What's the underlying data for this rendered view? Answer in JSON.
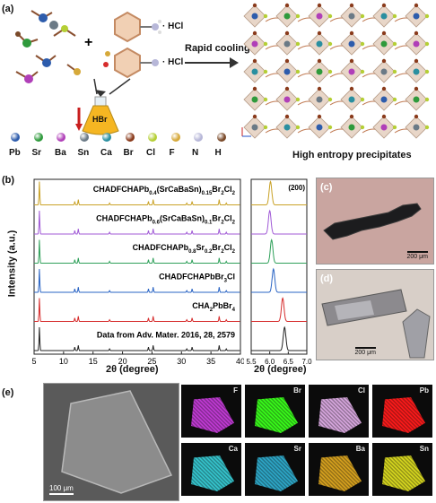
{
  "panel_a": {
    "label": "(a)",
    "hcl_top": "· HCl",
    "hcl_bottom": "· HCl",
    "plus": "+",
    "hbr": "HBr",
    "arrow_label": "Rapid cooling",
    "precipitate_label": "High entropy precipitates",
    "legend": [
      {
        "symbol": "Pb",
        "color": "#2d5cac"
      },
      {
        "symbol": "Sr",
        "color": "#2f9a3c"
      },
      {
        "symbol": "Ba",
        "color": "#b03fb8"
      },
      {
        "symbol": "Sn",
        "color": "#6b7a86"
      },
      {
        "symbol": "Ca",
        "color": "#2a8fa0"
      },
      {
        "symbol": "Br",
        "color": "#8a3b1c"
      },
      {
        "symbol": "Cl",
        "color": "#b5cf35"
      },
      {
        "symbol": "F",
        "color": "#d6a93a"
      },
      {
        "symbol": "N",
        "color": "#b7b7d8"
      },
      {
        "symbol": "H",
        "color": "#7a4a2a"
      }
    ]
  },
  "panel_b": {
    "label": "(b)",
    "ylabel": "Intensity (a.u.)",
    "xlabel_main": "2θ (degree)",
    "xlabel_zoom": "2θ (degree)",
    "zoom_tag": "(200)",
    "main_ticks": [
      "5",
      "10",
      "15",
      "20",
      "25",
      "30",
      "35",
      "40"
    ],
    "zoom_ticks": [
      "5.5",
      "6.0",
      "6.5",
      "7.0"
    ],
    "traces": [
      {
        "label": "CHADFCHAPb0.4(SrCaBaSn)0.15Br2Cl2",
        "color": "#c9a227"
      },
      {
        "label": "CHADFCHAPb0.6(SrCaBaSn)0.1Br2Cl2",
        "color": "#a05ad6"
      },
      {
        "label": "CHADFCHAPb0.8Sr0.2Br2Cl2",
        "color": "#2fa05a"
      },
      {
        "label": "CHADFCHAPbBr3Cl",
        "color": "#2a64c4"
      },
      {
        "label": "CHA2PbBr4",
        "color": "#d62c2c"
      },
      {
        "label": "Data from Adv. Mater. 2016, 28, 2579",
        "color": "#222222"
      }
    ],
    "trace_parts": [
      [
        {
          "t": "CHADFCHAPb"
        },
        {
          "s": "0.4"
        },
        {
          "t": "(SrCaBaSn)"
        },
        {
          "s": "0.15"
        },
        {
          "t": "Br"
        },
        {
          "s": "2"
        },
        {
          "t": "Cl"
        },
        {
          "s": "2"
        }
      ],
      [
        {
          "t": "CHADFCHAPb"
        },
        {
          "s": "0.6"
        },
        {
          "t": "(SrCaBaSn)"
        },
        {
          "s": "0.1"
        },
        {
          "t": "Br"
        },
        {
          "s": "2"
        },
        {
          "t": "Cl"
        },
        {
          "s": "2"
        }
      ],
      [
        {
          "t": "CHADFCHAPb"
        },
        {
          "s": "0.8"
        },
        {
          "t": "Sr"
        },
        {
          "s": "0.2"
        },
        {
          "t": "Br"
        },
        {
          "s": "2"
        },
        {
          "t": "Cl"
        },
        {
          "s": "2"
        }
      ],
      [
        {
          "t": "CHADFCHAPbBr"
        },
        {
          "s": "3"
        },
        {
          "t": "Cl"
        }
      ],
      [
        {
          "t": "CHA"
        },
        {
          "s": "2"
        },
        {
          "t": "PbBr"
        },
        {
          "s": "4"
        }
      ],
      [
        {
          "t": "Data from Adv. Mater. 2016, 28, 2579"
        }
      ]
    ]
  },
  "panel_c": {
    "label": "(c)",
    "scale": "200 μm"
  },
  "panel_d": {
    "label": "(d)",
    "scale": "200 μm"
  },
  "panel_e": {
    "label": "(e)",
    "scale": "100 μm",
    "maps": [
      {
        "el": "F",
        "color": "#c23ad6"
      },
      {
        "el": "Br",
        "color": "#39ff1a"
      },
      {
        "el": "Cl",
        "color": "#d9a8e0"
      },
      {
        "el": "Pb",
        "color": "#ff1a1a"
      },
      {
        "el": "Ca",
        "color": "#35c6cf"
      },
      {
        "el": "Sr",
        "color": "#2da8c9"
      },
      {
        "el": "Ba",
        "color": "#d8a21e"
      },
      {
        "el": "Sn",
        "color": "#d8d81e"
      }
    ]
  }
}
